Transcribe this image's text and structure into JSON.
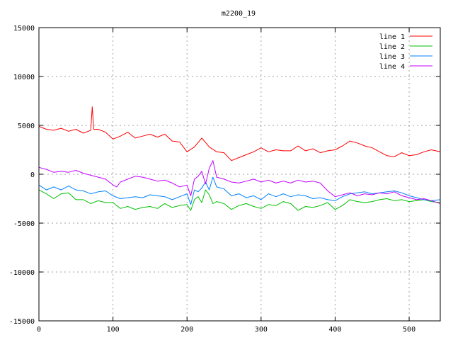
{
  "chart_data": {
    "type": "line",
    "title": "m2200_19",
    "xlabel": "",
    "ylabel": "",
    "xlim": [
      0,
      542
    ],
    "ylim": [
      -15000,
      15000
    ],
    "x_ticks": [
      0,
      100,
      200,
      300,
      400,
      500
    ],
    "y_ticks": [
      -15000,
      -10000,
      -5000,
      0,
      5000,
      10000,
      15000
    ],
    "grid": true,
    "legend_position": "top-right",
    "series": [
      {
        "name": "line 1",
        "color": "#ff0000",
        "x": [
          0,
          10,
          20,
          30,
          40,
          50,
          60,
          70,
          72,
          74,
          80,
          90,
          100,
          110,
          120,
          130,
          140,
          150,
          160,
          170,
          180,
          190,
          200,
          210,
          220,
          230,
          240,
          250,
          260,
          270,
          280,
          290,
          300,
          310,
          320,
          330,
          340,
          350,
          360,
          370,
          380,
          390,
          400,
          410,
          420,
          430,
          440,
          450,
          460,
          470,
          480,
          490,
          500,
          510,
          520,
          530,
          542
        ],
        "values": [
          4900,
          4600,
          4500,
          4700,
          4400,
          4600,
          4200,
          4500,
          6900,
          4600,
          4600,
          4300,
          3600,
          3900,
          4300,
          3700,
          3900,
          4100,
          3800,
          4100,
          3400,
          3300,
          2300,
          2800,
          3700,
          2800,
          2300,
          2200,
          1400,
          1700,
          2000,
          2300,
          2700,
          2300,
          2500,
          2400,
          2400,
          2900,
          2400,
          2600,
          2200,
          2400,
          2500,
          2900,
          3400,
          3200,
          2900,
          2700,
          2300,
          1900,
          1800,
          2200,
          1900,
          2000,
          2300,
          2500,
          2300
        ]
      },
      {
        "name": "line 2",
        "color": "#00c000",
        "x": [
          0,
          10,
          20,
          30,
          40,
          50,
          60,
          70,
          80,
          90,
          100,
          110,
          120,
          130,
          140,
          150,
          160,
          170,
          180,
          190,
          200,
          205,
          210,
          215,
          220,
          225,
          230,
          235,
          240,
          250,
          260,
          270,
          280,
          290,
          300,
          310,
          320,
          330,
          340,
          350,
          360,
          370,
          380,
          390,
          400,
          410,
          420,
          430,
          440,
          450,
          460,
          470,
          480,
          490,
          500,
          510,
          520,
          530,
          542
        ],
        "values": [
          -1600,
          -2000,
          -2500,
          -2000,
          -1900,
          -2600,
          -2600,
          -3000,
          -2700,
          -2900,
          -2900,
          -3500,
          -3300,
          -3600,
          -3400,
          -3300,
          -3500,
          -3000,
          -3400,
          -3200,
          -3100,
          -3700,
          -2600,
          -2300,
          -2900,
          -1600,
          -2100,
          -3000,
          -2800,
          -3000,
          -3600,
          -3200,
          -3000,
          -3300,
          -3500,
          -3100,
          -3200,
          -2800,
          -3000,
          -3700,
          -3300,
          -3400,
          -3200,
          -2900,
          -3600,
          -3200,
          -2600,
          -2800,
          -2900,
          -2800,
          -2600,
          -2500,
          -2700,
          -2600,
          -2800,
          -2700,
          -2600,
          -2800,
          -2900
        ]
      },
      {
        "name": "line 3",
        "color": "#0080ff",
        "x": [
          0,
          10,
          20,
          30,
          40,
          50,
          60,
          70,
          80,
          90,
          100,
          110,
          120,
          130,
          140,
          150,
          160,
          170,
          180,
          190,
          200,
          205,
          210,
          215,
          220,
          225,
          230,
          235,
          240,
          250,
          260,
          270,
          280,
          290,
          300,
          310,
          320,
          330,
          340,
          350,
          360,
          370,
          380,
          390,
          400,
          410,
          420,
          430,
          440,
          450,
          460,
          470,
          480,
          490,
          500,
          510,
          520,
          530,
          542
        ],
        "values": [
          -1100,
          -1600,
          -1300,
          -1600,
          -1200,
          -1600,
          -1700,
          -2000,
          -1800,
          -1700,
          -2200,
          -2500,
          -2400,
          -2300,
          -2400,
          -2100,
          -2200,
          -2300,
          -2600,
          -2300,
          -2000,
          -3100,
          -1600,
          -1800,
          -1400,
          -800,
          -1600,
          -300,
          -1300,
          -1500,
          -2200,
          -2000,
          -2400,
          -2200,
          -2600,
          -2000,
          -2300,
          -2000,
          -2300,
          -2100,
          -2200,
          -2500,
          -2400,
          -2600,
          -2700,
          -2300,
          -2000,
          -1900,
          -1800,
          -2000,
          -1900,
          -1800,
          -1700,
          -1900,
          -2200,
          -2400,
          -2600,
          -2700,
          -2600
        ]
      },
      {
        "name": "line 4",
        "color": "#c000ff",
        "x": [
          0,
          10,
          20,
          30,
          40,
          50,
          60,
          70,
          80,
          90,
          100,
          105,
          110,
          120,
          130,
          140,
          150,
          160,
          170,
          180,
          190,
          200,
          205,
          210,
          215,
          220,
          225,
          230,
          235,
          240,
          250,
          260,
          270,
          280,
          290,
          300,
          310,
          320,
          330,
          340,
          350,
          360,
          370,
          380,
          390,
          400,
          410,
          420,
          430,
          440,
          450,
          460,
          470,
          480,
          490,
          500,
          510,
          520,
          530,
          542
        ],
        "values": [
          700,
          500,
          200,
          300,
          200,
          400,
          100,
          -100,
          -300,
          -500,
          -1100,
          -1300,
          -800,
          -500,
          -200,
          -300,
          -500,
          -700,
          -600,
          -900,
          -1300,
          -1100,
          -2200,
          -500,
          -200,
          300,
          -1000,
          600,
          1400,
          -300,
          -500,
          -800,
          -900,
          -700,
          -500,
          -800,
          -600,
          -900,
          -700,
          -900,
          -600,
          -800,
          -700,
          -900,
          -1700,
          -2300,
          -2100,
          -1900,
          -2200,
          -2000,
          -2100,
          -1900,
          -2000,
          -1800,
          -2200,
          -2400,
          -2600,
          -2500,
          -2700,
          -3000
        ]
      }
    ]
  }
}
